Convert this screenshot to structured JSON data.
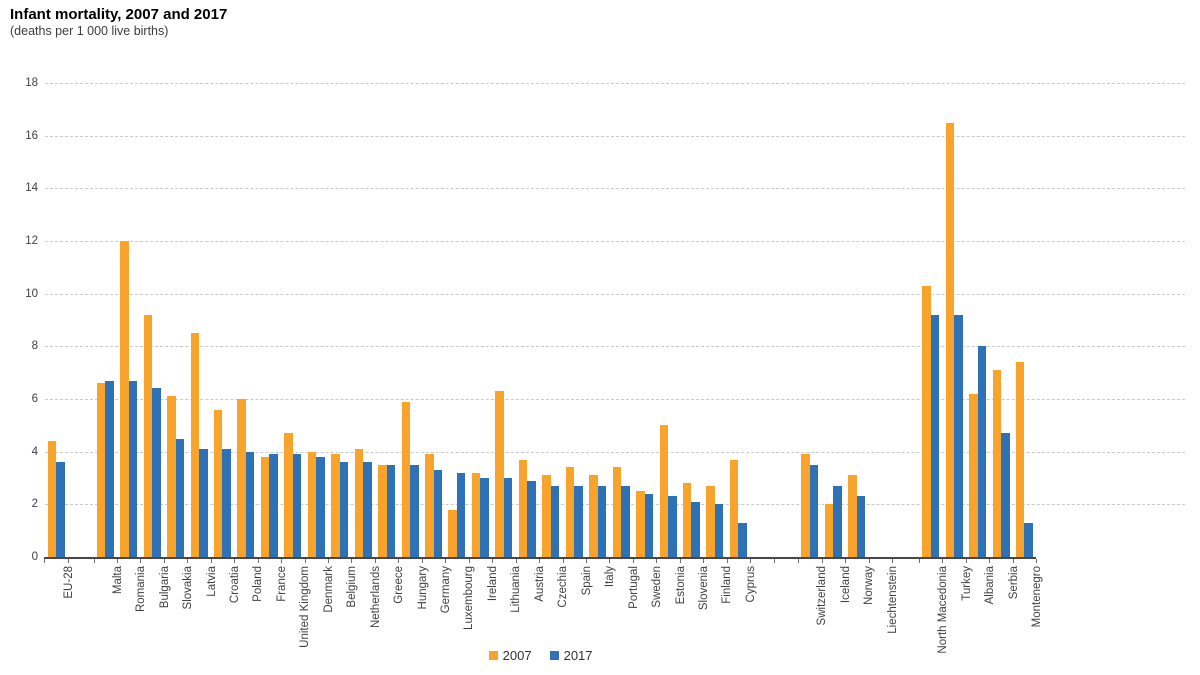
{
  "header": {
    "title": "Infant mortality, 2007 and 2017",
    "subtitle": "(deaths per 1 000 live births)"
  },
  "legend": {
    "items": [
      {
        "label": "2007",
        "color": "#F8A32B"
      },
      {
        "label": "2017",
        "color": "#2E71B5"
      }
    ]
  },
  "colors": {
    "series_2007": "#F8A32B",
    "series_2017": "#2E71B5",
    "gridline": "#c9c9c9",
    "axis": "#474747",
    "text": "#404040"
  },
  "chart_data": {
    "type": "bar",
    "title": "Infant mortality, 2007 and 2017",
    "subtitle": "(deaths per 1 000 live births)",
    "xlabel": "",
    "ylabel": "deaths per 1 000 live births",
    "ylim": [
      0,
      18
    ],
    "ytick_step": 2,
    "yticks": [
      0,
      2,
      4,
      6,
      8,
      10,
      12,
      14,
      16,
      18
    ],
    "grid": "horizontal-dashed",
    "legend_position": "bottom-center",
    "categories": [
      "EU-28",
      "Malta",
      "Romania",
      "Bulgaria",
      "Slovakia",
      "Latvia",
      "Croatia",
      "Poland",
      "France",
      "United Kingdom",
      "Denmark",
      "Belgium",
      "Netherlands",
      "Greece",
      "Hungary",
      "Germany",
      "Luxembourg",
      "Ireland",
      "Lithuania",
      "Austria",
      "Czechia",
      "Spain",
      "Italy",
      "Portugal",
      "Sweden",
      "Estonia",
      "Slovenia",
      "Finland",
      "Cyprus",
      "Switzerland",
      "Iceland",
      "Norway",
      "Liechtenstein",
      "North Macedonia",
      "Turkey",
      "Albania",
      "Serbia",
      "Montenegro"
    ],
    "series": [
      {
        "name": "2007",
        "color": "#F8A32B",
        "values": [
          4.4,
          6.6,
          12.0,
          9.2,
          6.1,
          8.5,
          5.6,
          6.0,
          3.8,
          4.7,
          4.0,
          3.9,
          4.1,
          3.5,
          5.9,
          3.9,
          1.8,
          3.2,
          6.3,
          3.7,
          3.1,
          3.4,
          3.1,
          3.4,
          2.5,
          5.0,
          2.8,
          2.7,
          3.7,
          3.9,
          2.0,
          3.1,
          null,
          10.3,
          16.5,
          6.2,
          7.1,
          7.4
        ]
      },
      {
        "name": "2017",
        "color": "#2E71B5",
        "values": [
          3.6,
          6.7,
          6.7,
          6.4,
          4.5,
          4.1,
          4.1,
          4.0,
          3.9,
          3.9,
          3.8,
          3.6,
          3.6,
          3.5,
          3.5,
          3.3,
          3.2,
          3.0,
          3.0,
          2.9,
          2.7,
          2.7,
          2.7,
          2.7,
          2.4,
          2.3,
          2.1,
          2.0,
          1.3,
          3.5,
          2.7,
          2.3,
          null,
          9.2,
          9.2,
          8.0,
          4.7,
          1.3
        ]
      }
    ],
    "group_gaps_after": {
      "EU-28": 1.1,
      "Cyprus": 2.05,
      "Liechtenstein": 1.15
    }
  }
}
